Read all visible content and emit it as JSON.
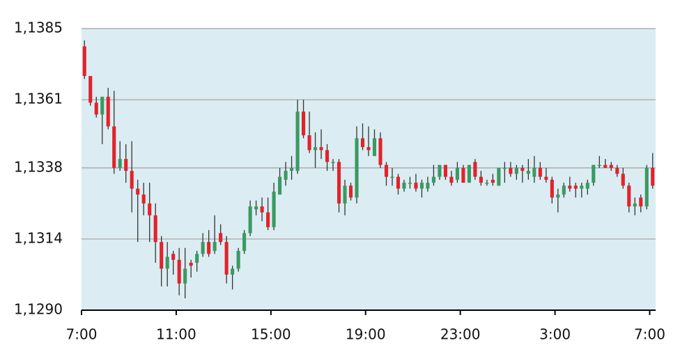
{
  "chart_data": {
    "type": "candlestick",
    "x": [
      0.125,
      0.375,
      0.625,
      0.875,
      1.125,
      1.375,
      1.625,
      1.875,
      2.125,
      2.375,
      2.625,
      2.875,
      3.125,
      3.375,
      3.625,
      3.875,
      4.125,
      4.375,
      4.625,
      4.875,
      5.125,
      5.375,
      5.625,
      5.875,
      6.125,
      6.375,
      6.625,
      6.875,
      7.125,
      7.375,
      7.625,
      7.875,
      8.125,
      8.375,
      8.625,
      8.875,
      9.125,
      9.375,
      9.625,
      9.875,
      10.125,
      10.375,
      10.625,
      10.875,
      11.125,
      11.375,
      11.625,
      11.875,
      12.125,
      12.375,
      12.625,
      12.875,
      13.125,
      13.375,
      13.625,
      13.875,
      14.125,
      14.375,
      14.625,
      14.875,
      15.125,
      15.375,
      15.625,
      15.875,
      16.125,
      16.375,
      16.625,
      16.875,
      17.125,
      17.375,
      17.625,
      17.875,
      18.125,
      18.375,
      18.625,
      18.875,
      19.125,
      19.375,
      19.625,
      19.875,
      20.125,
      20.375,
      20.625,
      20.875,
      21.125,
      21.375,
      21.625,
      21.875,
      22.125,
      22.375,
      22.625,
      22.875,
      23.125,
      23.375,
      23.625,
      23.875,
      24.125
    ],
    "open": [
      1.1379,
      1.1369,
      1.136,
      1.1356,
      1.1362,
      1.1352,
      1.1338,
      1.1341,
      1.1337,
      1.1331,
      1.1329,
      1.1326,
      1.1322,
      1.1313,
      1.1304,
      1.1309,
      1.1307,
      1.1299,
      1.1306,
      1.1306,
      1.1309,
      1.1313,
      1.131,
      1.1316,
      1.1313,
      1.1302,
      1.1304,
      1.131,
      1.1316,
      1.1324,
      1.1325,
      1.1323,
      1.1318,
      1.1329,
      1.1334,
      1.1337,
      1.1337,
      1.1357,
      1.1349,
      1.1344,
      1.1345,
      1.1344,
      1.134,
      1.134,
      1.1326,
      1.1332,
      1.1328,
      1.1348,
      1.1345,
      1.1342,
      1.1348,
      1.1339,
      1.1335,
      1.1335,
      1.1331,
      1.1333,
      1.1333,
      1.1331,
      1.1331,
      1.1333,
      1.1335,
      1.1339,
      1.1335,
      1.1334,
      1.1338,
      1.1333,
      1.134,
      1.1335,
      1.1333,
      1.1334,
      1.1332,
      1.1338,
      1.1338,
      1.1336,
      1.1338,
      1.1336,
      1.1335,
      1.1338,
      1.1335,
      1.1334,
      1.1328,
      1.1329,
      1.1332,
      1.1332,
      1.1331,
      1.1331,
      1.1333,
      1.1339,
      1.1339,
      1.1339,
      1.1338,
      1.1336,
      1.1332,
      1.1325,
      1.1328,
      1.1325,
      1.1338
    ],
    "high": [
      1.1381,
      1.1369,
      1.1362,
      1.1362,
      1.1365,
      1.1364,
      1.1347,
      1.1346,
      1.1347,
      1.1334,
      1.1333,
      1.1333,
      1.1326,
      1.1315,
      1.1313,
      1.131,
      1.1311,
      1.1311,
      1.1307,
      1.131,
      1.1316,
      1.1317,
      1.1322,
      1.1319,
      1.1315,
      1.1305,
      1.1311,
      1.1317,
      1.1327,
      1.1327,
      1.1328,
      1.1328,
      1.1333,
      1.1338,
      1.134,
      1.1342,
      1.1361,
      1.1361,
      1.1357,
      1.135,
      1.1351,
      1.1346,
      1.1341,
      1.1341,
      1.1334,
      1.1333,
      1.1352,
      1.1353,
      1.1352,
      1.1351,
      1.135,
      1.134,
      1.1338,
      1.1336,
      1.1334,
      1.1335,
      1.1336,
      1.1334,
      1.1335,
      1.1339,
      1.1339,
      1.1339,
      1.1337,
      1.134,
      1.1339,
      1.1339,
      1.1341,
      1.1337,
      1.1334,
      1.1336,
      1.1338,
      1.134,
      1.134,
      1.1339,
      1.1339,
      1.1341,
      1.1342,
      1.134,
      1.1338,
      1.1335,
      1.1331,
      1.1333,
      1.1335,
      1.1333,
      1.1333,
      1.1334,
      1.1339,
      1.1342,
      1.1341,
      1.134,
      1.1339,
      1.1338,
      1.1333,
      1.1328,
      1.1329,
      1.1339,
      1.1343
    ],
    "low": [
      1.1368,
      1.1359,
      1.1355,
      1.1346,
      1.1351,
      1.1336,
      1.1337,
      1.1333,
      1.1323,
      1.1313,
      1.1322,
      1.1313,
      1.1306,
      1.1298,
      1.1298,
      1.1302,
      1.1295,
      1.1294,
      1.1301,
      1.1303,
      1.1308,
      1.1308,
      1.1309,
      1.1312,
      1.1299,
      1.1297,
      1.1303,
      1.1309,
      1.1315,
      1.1322,
      1.132,
      1.1317,
      1.1317,
      1.1329,
      1.1332,
      1.1334,
      1.1336,
      1.1348,
      1.1343,
      1.1338,
      1.1341,
      1.1337,
      1.1337,
      1.1323,
      1.1322,
      1.1327,
      1.1326,
      1.1344,
      1.1342,
      1.1342,
      1.1338,
      1.1332,
      1.1332,
      1.1329,
      1.133,
      1.1331,
      1.133,
      1.1328,
      1.133,
      1.1332,
      1.1334,
      1.1334,
      1.1332,
      1.1333,
      1.1333,
      1.1333,
      1.1334,
      1.1332,
      1.1332,
      1.1332,
      1.1332,
      1.1333,
      1.1335,
      1.1334,
      1.1333,
      1.1334,
      1.1333,
      1.1334,
      1.1333,
      1.1326,
      1.1323,
      1.1328,
      1.133,
      1.1328,
      1.1328,
      1.1329,
      1.1332,
      1.1338,
      1.1338,
      1.1337,
      1.1335,
      1.1331,
      1.1323,
      1.1322,
      1.1323,
      1.1324,
      1.1331
    ],
    "close": [
      1.1369,
      1.136,
      1.1356,
      1.1362,
      1.1352,
      1.1338,
      1.1341,
      1.1337,
      1.1331,
      1.1329,
      1.1326,
      1.1322,
      1.1313,
      1.1304,
      1.1308,
      1.1307,
      1.1299,
      1.1304,
      1.1305,
      1.1309,
      1.1313,
      1.1309,
      1.1313,
      1.1313,
      1.1302,
      1.1304,
      1.131,
      1.1316,
      1.1325,
      1.1325,
      1.1323,
      1.1318,
      1.133,
      1.1335,
      1.1337,
      1.1338,
      1.1357,
      1.1349,
      1.1344,
      1.1345,
      1.1344,
      1.134,
      1.134,
      1.1326,
      1.1332,
      1.1328,
      1.1348,
      1.1345,
      1.1344,
      1.1348,
      1.1339,
      1.1335,
      1.1335,
      1.1331,
      1.1333,
      1.1333,
      1.1331,
      1.1333,
      1.1333,
      1.1335,
      1.1339,
      1.1335,
      1.1333,
      1.1338,
      1.1333,
      1.1339,
      1.1335,
      1.1333,
      1.1333,
      1.1333,
      1.1338,
      1.1338,
      1.1336,
      1.1338,
      1.1337,
      1.1337,
      1.1338,
      1.1335,
      1.1334,
      1.1328,
      1.1329,
      1.1332,
      1.1331,
      1.1331,
      1.1332,
      1.1333,
      1.1339,
      1.1339,
      1.1338,
      1.1338,
      1.1336,
      1.1332,
      1.1325,
      1.1326,
      1.1325,
      1.1338,
      1.1332
    ],
    "up_color": "#3a9a62",
    "down_color": "#e3222b",
    "wick_color": "#333333",
    "background": "#dbedf2",
    "xlim": [
      0,
      24.25
    ],
    "xticks": [
      {
        "value": 0,
        "label": "7:00"
      },
      {
        "value": 4,
        "label": "11:00"
      },
      {
        "value": 8,
        "label": "15:00"
      },
      {
        "value": 12,
        "label": "19:00"
      },
      {
        "value": 16,
        "label": "23:00"
      },
      {
        "value": 20,
        "label": "3:00"
      },
      {
        "value": 24,
        "label": "7:00"
      }
    ],
    "ylim": [
      1.129,
      1.1385
    ],
    "yticks": [
      {
        "value": 1.129,
        "label": "1,1290"
      },
      {
        "value": 1.1314,
        "label": "1,1314"
      },
      {
        "value": 1.1338,
        "label": "1,1338"
      },
      {
        "value": 1.1361,
        "label": "1,1361"
      },
      {
        "value": 1.1385,
        "label": "1,1385"
      }
    ],
    "grid": true
  }
}
